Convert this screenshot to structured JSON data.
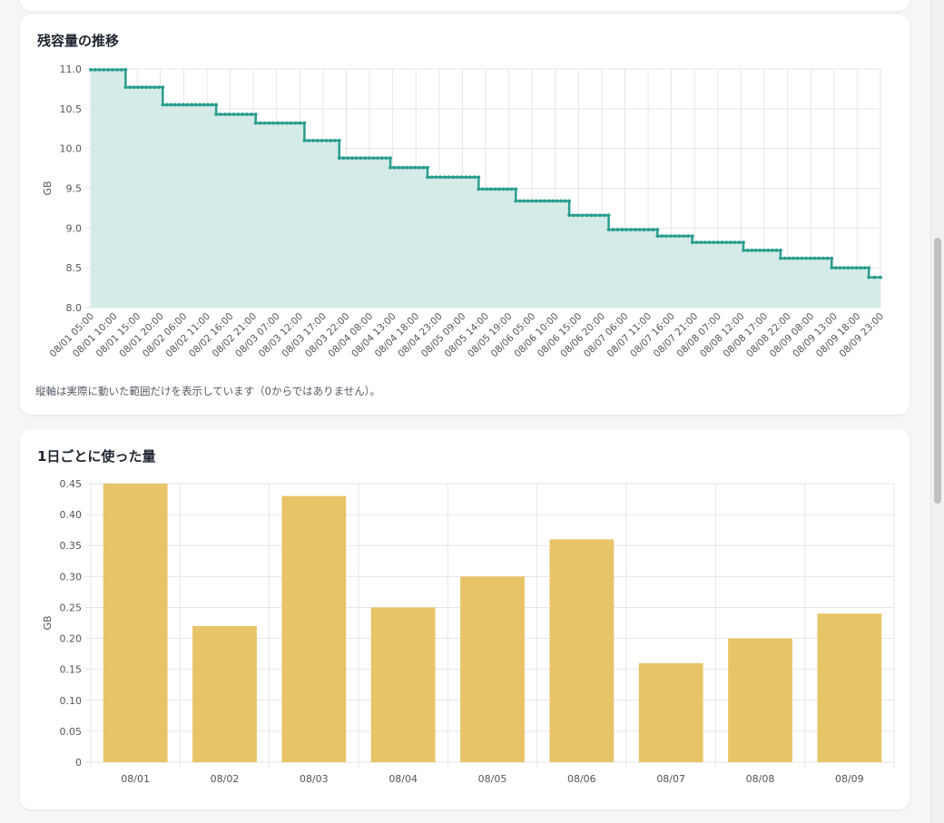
{
  "cards": {
    "remaining": {
      "title": "残容量の推移",
      "note": "縦軸は実際に動いた範囲だけを表示しています（0からではありません）。"
    },
    "daily": {
      "title": "1日ごとに使った量"
    }
  },
  "colors": {
    "line": "#2a9d8f",
    "area_fill": "#d4ebe8",
    "bar": "#e8c468",
    "grid": "#e6e6e6"
  },
  "chart_data": [
    {
      "type": "area",
      "title": "残容量の推移",
      "ylabel": "GB",
      "xlabel": "",
      "ylim": [
        8.0,
        11.0
      ],
      "y_ticks": [
        "8.0",
        "8.5",
        "9.0",
        "9.5",
        "10.0",
        "10.5",
        "11.0"
      ],
      "x_tick_labels": [
        "08/01 05:00",
        "08/01 10:00",
        "08/01 15:00",
        "08/01 20:00",
        "08/02 06:00",
        "08/02 11:00",
        "08/02 16:00",
        "08/02 21:00",
        "08/03 07:00",
        "08/03 12:00",
        "08/03 17:00",
        "08/03 22:00",
        "08/04 08:00",
        "08/04 13:00",
        "08/04 18:00",
        "08/04 23:00",
        "08/05 09:00",
        "08/05 14:00",
        "08/05 19:00",
        "08/06 05:00",
        "08/06 10:00",
        "08/06 15:00",
        "08/06 20:00",
        "08/07 06:00",
        "08/07 11:00",
        "08/07 16:00",
        "08/07 21:00",
        "08/08 07:00",
        "08/08 12:00",
        "08/08 17:00",
        "08/08 22:00",
        "08/09 08:00",
        "08/09 13:00",
        "08/09 18:00",
        "08/09 23:00"
      ],
      "series": [
        {
          "steps": [
            {
              "from_tick": 0,
              "to_tick": 1.5,
              "value": 10.99
            },
            {
              "from_tick": 1.5,
              "to_tick": 3.1,
              "value": 10.77
            },
            {
              "from_tick": 3.1,
              "to_tick": 5.4,
              "value": 10.55
            },
            {
              "from_tick": 5.4,
              "to_tick": 7.1,
              "value": 10.43
            },
            {
              "from_tick": 7.1,
              "to_tick": 9.2,
              "value": 10.32
            },
            {
              "from_tick": 9.2,
              "to_tick": 10.7,
              "value": 10.1
            },
            {
              "from_tick": 10.7,
              "to_tick": 12.9,
              "value": 9.88
            },
            {
              "from_tick": 12.9,
              "to_tick": 14.5,
              "value": 9.76
            },
            {
              "from_tick": 14.5,
              "to_tick": 16.7,
              "value": 9.64
            },
            {
              "from_tick": 16.7,
              "to_tick": 18.3,
              "value": 9.49
            },
            {
              "from_tick": 18.3,
              "to_tick": 20.6,
              "value": 9.34
            },
            {
              "from_tick": 20.6,
              "to_tick": 22.3,
              "value": 9.16
            },
            {
              "from_tick": 22.3,
              "to_tick": 24.4,
              "value": 8.98
            },
            {
              "from_tick": 24.4,
              "to_tick": 25.9,
              "value": 8.9
            },
            {
              "from_tick": 25.9,
              "to_tick": 28.1,
              "value": 8.82
            },
            {
              "from_tick": 28.1,
              "to_tick": 29.7,
              "value": 8.72
            },
            {
              "from_tick": 29.7,
              "to_tick": 31.9,
              "value": 8.62
            },
            {
              "from_tick": 31.9,
              "to_tick": 33.5,
              "value": 8.5
            },
            {
              "from_tick": 33.5,
              "to_tick": 34.0,
              "value": 8.38
            }
          ]
        }
      ]
    },
    {
      "type": "bar",
      "title": "1日ごとに使った量",
      "ylabel": "GB",
      "xlabel": "",
      "ylim": [
        0,
        0.45
      ],
      "y_ticks": [
        "0",
        "0.05",
        "0.10",
        "0.15",
        "0.20",
        "0.25",
        "0.30",
        "0.35",
        "0.40",
        "0.45"
      ],
      "categories": [
        "08/01",
        "08/02",
        "08/03",
        "08/04",
        "08/05",
        "08/06",
        "08/07",
        "08/08",
        "08/09"
      ],
      "values": [
        0.45,
        0.22,
        0.43,
        0.25,
        0.3,
        0.36,
        0.16,
        0.2,
        0.24
      ]
    }
  ]
}
